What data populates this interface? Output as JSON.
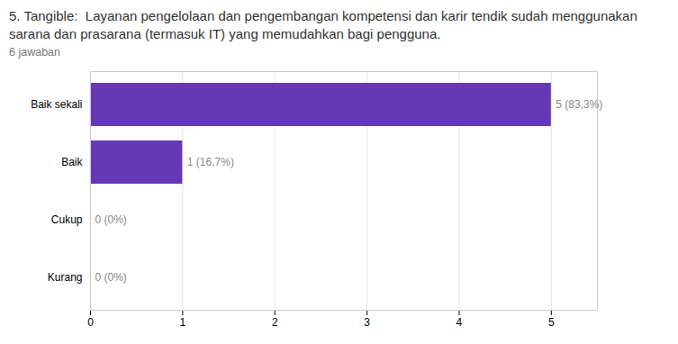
{
  "chart_data": {
    "type": "bar",
    "orientation": "horizontal",
    "title": "5. Tangible:  Layanan pengelolaan dan pengembangan kompetensi dan karir tendik sudah menggunakan sarana dan prasarana (termasuk IT) yang memudahkan bagi pengguna.",
    "subtitle": "6 jawaban",
    "categories": [
      "Kurang",
      "Cukup",
      "Baik",
      "Baik sekali"
    ],
    "values": [
      0,
      0,
      1,
      5
    ],
    "value_labels": [
      "0 (0%)",
      "0 (0%)",
      "1 (16,7%)",
      "5 (83,3%)"
    ],
    "data_labels": true,
    "color": "#6638b6",
    "xlim": [
      0,
      5.5
    ],
    "xticks": [
      0,
      1,
      2,
      3,
      4,
      5
    ],
    "grid": true
  }
}
